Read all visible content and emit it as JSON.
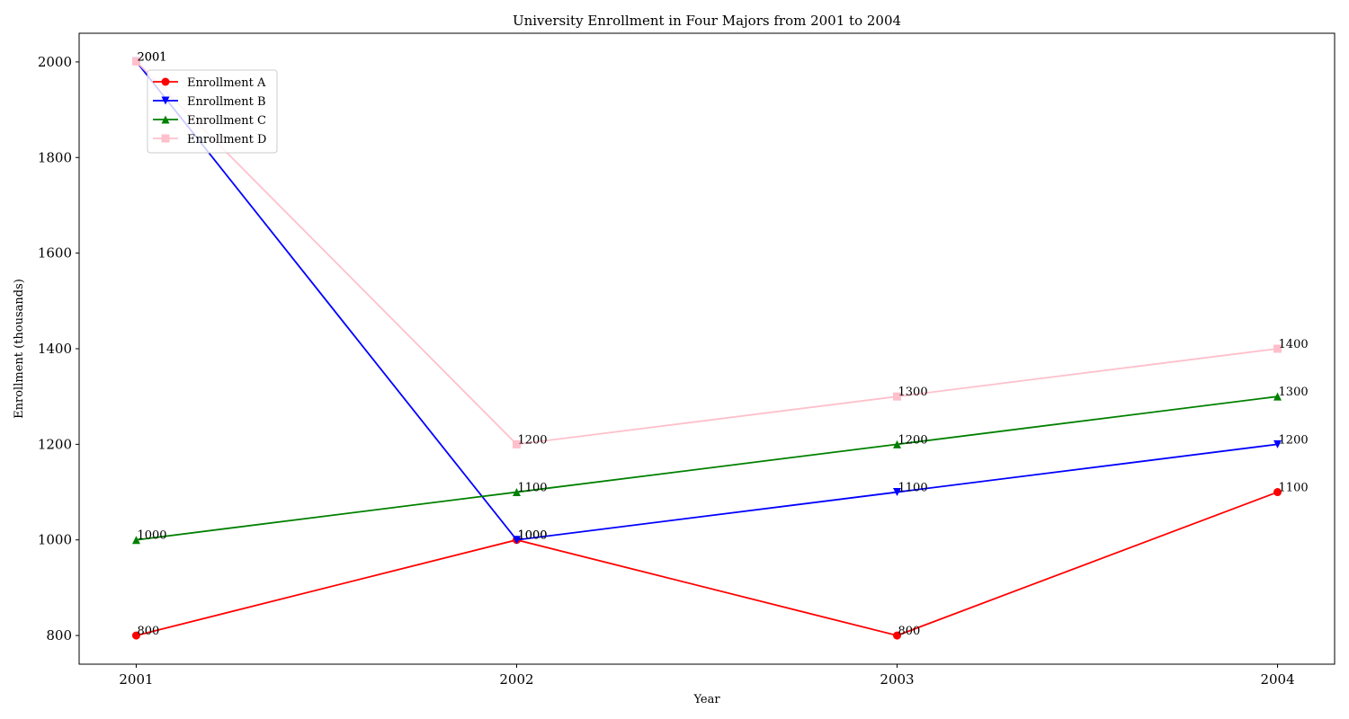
{
  "chart_data": {
    "type": "line",
    "title": "University Enrollment in Four Majors from 2001 to 2004",
    "x_label": "Year",
    "y_label": "Enrollment (thousands)",
    "x": [
      2001,
      2002,
      2003,
      2004
    ],
    "xlim": [
      2000.85,
      2004.15
    ],
    "xticks": [
      2001,
      2002,
      2003,
      2004
    ],
    "ylim": [
      740,
      2060
    ],
    "yticks": [
      800,
      1000,
      1200,
      1400,
      1600,
      1800,
      2000
    ],
    "legend": "upper left",
    "data_labels": true,
    "series": [
      {
        "name": "Enrollment A",
        "color": "red",
        "marker": "circle",
        "values": [
          800,
          1000,
          800,
          1100
        ]
      },
      {
        "name": "Enrollment B",
        "color": "blue",
        "marker": "triangle-down",
        "values": [
          2001,
          1000,
          1100,
          1200
        ]
      },
      {
        "name": "Enrollment C",
        "color": "green",
        "marker": "triangle-up",
        "values": [
          1000,
          1100,
          1200,
          1300
        ]
      },
      {
        "name": "Enrollment D",
        "color": "pink",
        "marker": "square",
        "values": [
          2001,
          1200,
          1300,
          1400
        ]
      }
    ]
  }
}
